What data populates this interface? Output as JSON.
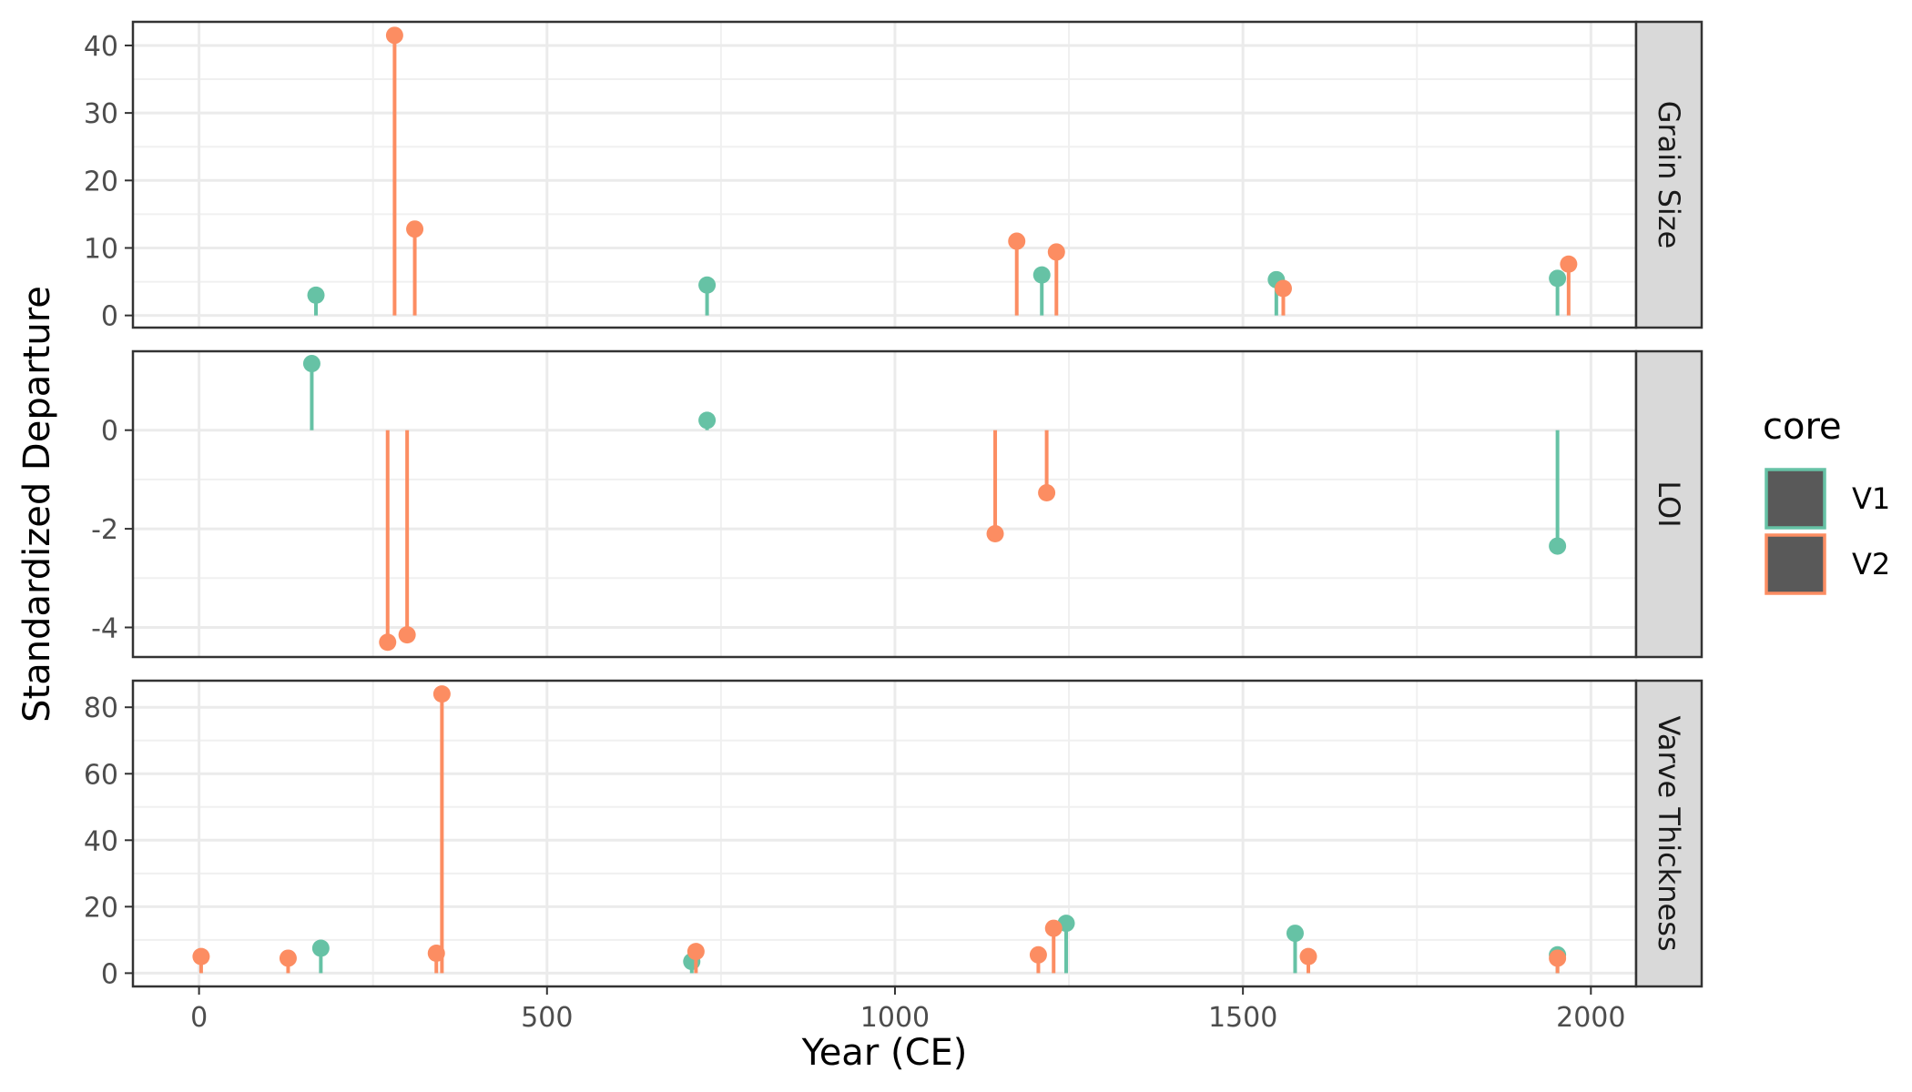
{
  "chart_data": {
    "type": "lollipop",
    "xlabel": "Year (CE)",
    "ylabel": "Standardized Departure",
    "x_ticks": [
      0,
      500,
      1000,
      1500,
      2000
    ],
    "xlim": [
      -95,
      2065
    ],
    "legend": {
      "title": "core",
      "placement": "right",
      "entries": [
        {
          "label": "V1",
          "color": "#66c2a5"
        },
        {
          "label": "V2",
          "color": "#fc8d62"
        }
      ]
    },
    "grid": true,
    "facets": [
      {
        "label": "Grain Size",
        "ylim": [
          -1.8,
          43.5
        ],
        "y_ticks": [
          0,
          10,
          20,
          30,
          40
        ],
        "series": [
          {
            "name": "V1",
            "points": [
              [
                168,
                3.0
              ],
              [
                730,
                4.5
              ],
              [
                1211,
                6.0
              ],
              [
                1548,
                5.3
              ],
              [
                1952,
                5.5
              ]
            ]
          },
          {
            "name": "V2",
            "points": [
              [
                281,
                41.5
              ],
              [
                310,
                12.8
              ],
              [
                1175,
                11.0
              ],
              [
                1232,
                9.4
              ],
              [
                1558,
                4.0
              ],
              [
                1968,
                7.6
              ]
            ]
          }
        ]
      },
      {
        "label": "LOI",
        "ylim": [
          -4.6,
          1.6
        ],
        "y_ticks": [
          -4,
          -2,
          0
        ],
        "series": [
          {
            "name": "V1",
            "points": [
              [
                162,
                1.35
              ],
              [
                730,
                0.2
              ],
              [
                1952,
                -2.35
              ]
            ]
          },
          {
            "name": "V2",
            "points": [
              [
                271,
                -4.3
              ],
              [
                299,
                -4.15
              ],
              [
                1144,
                -2.1
              ],
              [
                1218,
                -1.27
              ]
            ]
          }
        ]
      },
      {
        "label": "Varve Thickness",
        "ylim": [
          -4,
          88
        ],
        "y_ticks": [
          0,
          20,
          40,
          60,
          80
        ],
        "series": [
          {
            "name": "V1",
            "points": [
              [
                175,
                7.5
              ],
              [
                708,
                3.5
              ],
              [
                1246,
                15.0
              ],
              [
                1575,
                12.0
              ],
              [
                1952,
                5.5
              ]
            ]
          },
          {
            "name": "V2",
            "points": [
              [
                3,
                5.0
              ],
              [
                128,
                4.5
              ],
              [
                341,
                6.0
              ],
              [
                349,
                84.0
              ],
              [
                714,
                6.5
              ],
              [
                1206,
                5.5
              ],
              [
                1228,
                13.5
              ],
              [
                1594,
                5.0
              ],
              [
                1952,
                4.5
              ]
            ]
          }
        ]
      }
    ]
  }
}
